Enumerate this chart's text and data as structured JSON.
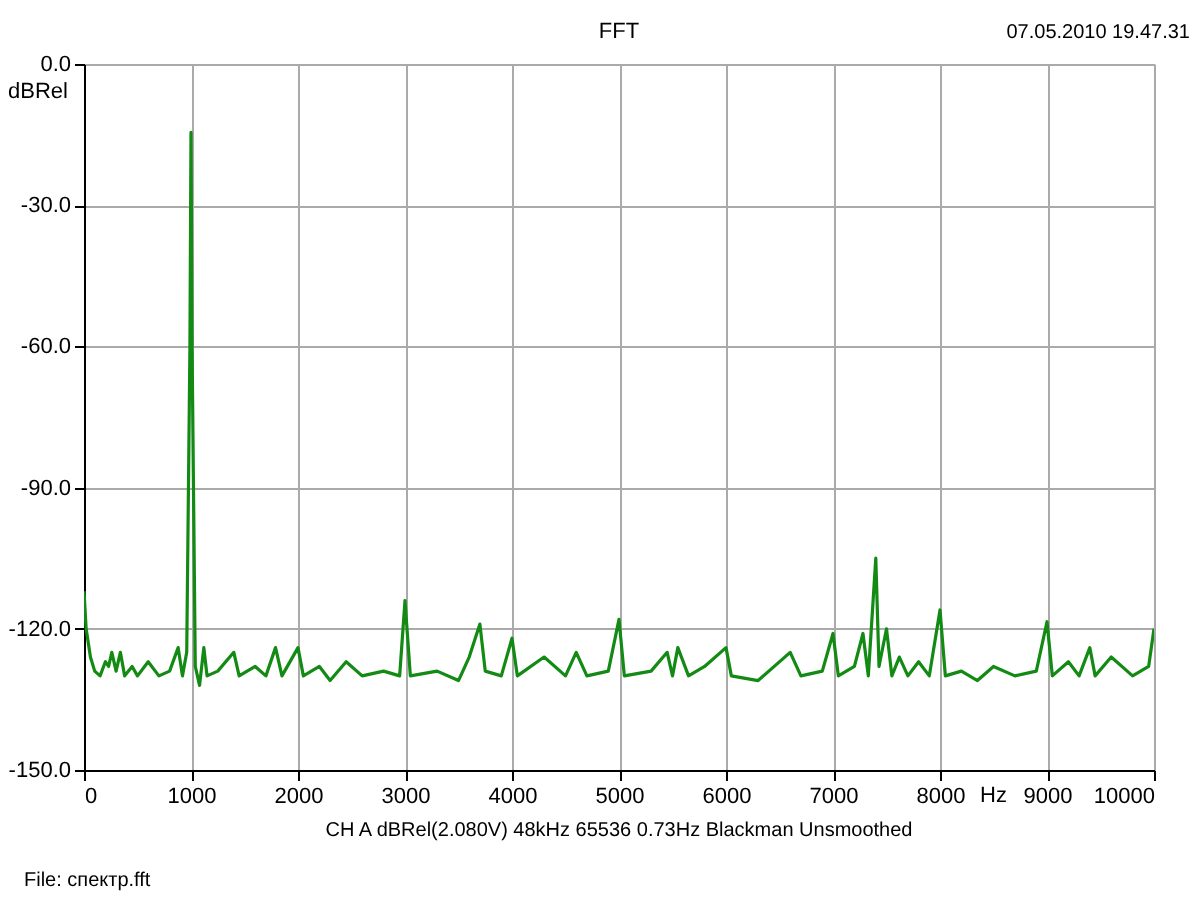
{
  "chart_data": {
    "type": "line",
    "title": "FFT",
    "ylabel": "dBRel",
    "xlabel": "Hz",
    "annotations": [
      "07.05.2010 19.47.31",
      "CH A dBRel(2.080V) 48kHz 65536 0.73Hz Blackman Unsmoothed",
      "File: спектр.fft"
    ],
    "xlim": [
      0,
      10000
    ],
    "xticks": [
      0,
      1000,
      2000,
      3000,
      4000,
      5000,
      6000,
      7000,
      8000,
      9000,
      10000
    ],
    "ylim": [
      -150,
      0
    ],
    "yticks": [
      {
        "value": 0,
        "label": "0.0"
      },
      {
        "value": -30,
        "label": "-30.0"
      },
      {
        "value": -60,
        "label": "-60.0"
      },
      {
        "value": -90,
        "label": "-90.0"
      },
      {
        "value": -120,
        "label": "-120.0"
      },
      {
        "value": -150,
        "label": "-150.0"
      }
    ],
    "grid": true,
    "marker": "none",
    "line_style": "solid",
    "series": [
      {
        "color": "#138a13",
        "x": [
          0,
          20,
          60,
          100,
          150,
          200,
          230,
          260,
          300,
          340,
          380,
          450,
          500,
          600,
          700,
          800,
          880,
          920,
          960,
          990,
          1000,
          1010,
          1040,
          1080,
          1120,
          1150,
          1250,
          1400,
          1450,
          1600,
          1700,
          1790,
          1850,
          2000,
          2050,
          2200,
          2300,
          2450,
          2600,
          2800,
          2950,
          3000,
          3050,
          3300,
          3500,
          3600,
          3700,
          3750,
          3900,
          4000,
          4050,
          4300,
          4500,
          4600,
          4700,
          4900,
          5000,
          5050,
          5300,
          5450,
          5500,
          5550,
          5650,
          5800,
          6000,
          6050,
          6300,
          6600,
          6700,
          6900,
          7000,
          7050,
          7200,
          7280,
          7330,
          7400,
          7430,
          7500,
          7550,
          7620,
          7700,
          7800,
          7900,
          8000,
          8050,
          8200,
          8350,
          8500,
          8700,
          8900,
          9000,
          9050,
          9200,
          9300,
          9400,
          9450,
          9600,
          9800,
          9950,
          10000
        ],
        "values": [
          -112,
          -120,
          -126,
          -129,
          -130,
          -127,
          -128,
          -125,
          -129,
          -125,
          -130,
          -128,
          -130,
          -127,
          -130,
          -129,
          -124,
          -130,
          -125,
          -60,
          -14.5,
          -60,
          -128,
          -132,
          -124,
          -130,
          -129,
          -125,
          -130,
          -128,
          -130,
          -124,
          -130,
          -124,
          -130,
          -128,
          -131,
          -127,
          -130,
          -129,
          -130,
          -114,
          -130,
          -129,
          -131,
          -126,
          -119,
          -129,
          -130,
          -122,
          -130,
          -126,
          -130,
          -125,
          -130,
          -129,
          -118,
          -130,
          -129,
          -125,
          -130,
          -124,
          -130,
          -128,
          -124,
          -130,
          -131,
          -125,
          -130,
          -129,
          -121,
          -130,
          -128,
          -121,
          -130,
          -105,
          -128,
          -120,
          -130,
          -126,
          -130,
          -127,
          -130,
          -116,
          -130,
          -129,
          -131,
          -128,
          -130,
          -129,
          -118.5,
          -130,
          -127,
          -130,
          -124,
          -130,
          -126,
          -130,
          -128,
          -120
        ]
      }
    ]
  }
}
